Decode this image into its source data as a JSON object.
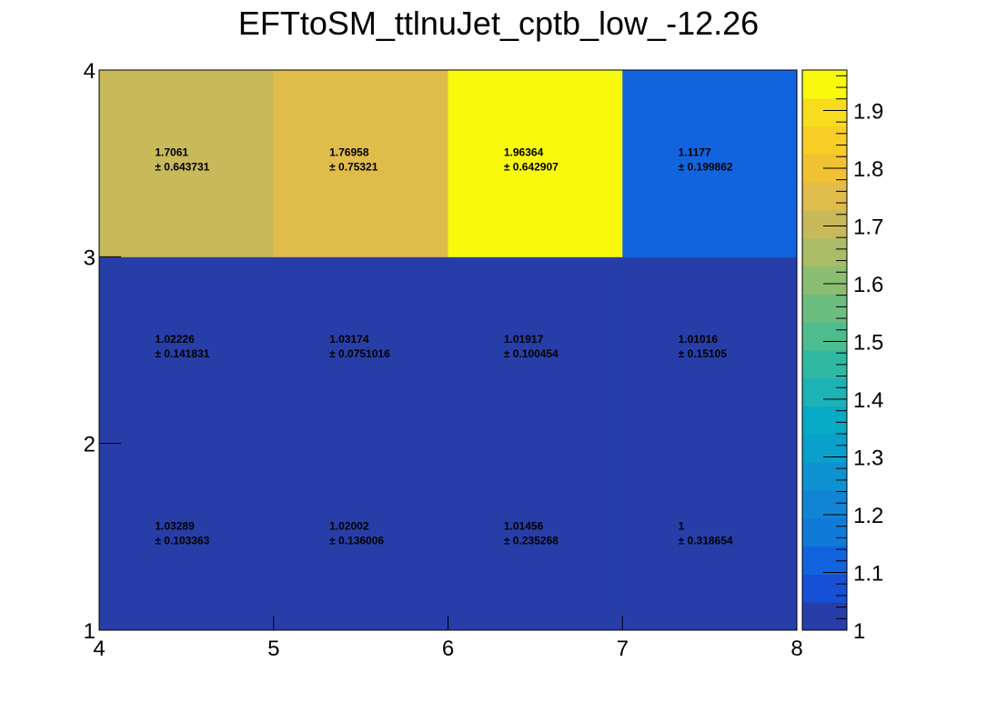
{
  "chart_data": {
    "type": "heatmap",
    "title": "EFTtoSM_ttlnuJet_cptb_low_-12.26",
    "xlabel": "",
    "ylabel": "",
    "x_edges": [
      4,
      5,
      6,
      7,
      8
    ],
    "y_edges": [
      1,
      2,
      3,
      4
    ],
    "x_ticks": [
      "4",
      "5",
      "6",
      "7",
      "8"
    ],
    "y_ticks": [
      "1",
      "2",
      "3",
      "4"
    ],
    "zlim": [
      1.0,
      1.97
    ],
    "z_ticks": [
      "1",
      "1.1",
      "1.2",
      "1.3",
      "1.4",
      "1.5",
      "1.6",
      "1.7",
      "1.8",
      "1.9"
    ],
    "cells": [
      {
        "x": 0,
        "y": 0,
        "value": 1.03289,
        "value_label": "1.03289",
        "error_label": "± 0.103363"
      },
      {
        "x": 1,
        "y": 0,
        "value": 1.02002,
        "value_label": "1.02002",
        "error_label": "± 0.136006"
      },
      {
        "x": 2,
        "y": 0,
        "value": 1.01456,
        "value_label": "1.01456",
        "error_label": "± 0.235268"
      },
      {
        "x": 3,
        "y": 0,
        "value": 1.0,
        "value_label": "1",
        "error_label": "± 0.318654"
      },
      {
        "x": 0,
        "y": 1,
        "value": 1.02226,
        "value_label": "1.02226",
        "error_label": "± 0.141831"
      },
      {
        "x": 1,
        "y": 1,
        "value": 1.03174,
        "value_label": "1.03174",
        "error_label": "± 0.0751016"
      },
      {
        "x": 2,
        "y": 1,
        "value": 1.01917,
        "value_label": "1.01917",
        "error_label": "± 0.100454"
      },
      {
        "x": 3,
        "y": 1,
        "value": 1.01016,
        "value_label": "1.01016",
        "error_label": "± 0.15105"
      },
      {
        "x": 0,
        "y": 2,
        "value": 1.7061,
        "value_label": "1.7061",
        "error_label": "± 0.643731"
      },
      {
        "x": 1,
        "y": 2,
        "value": 1.76958,
        "value_label": "1.76958",
        "error_label": "± 0.75321"
      },
      {
        "x": 2,
        "y": 2,
        "value": 1.96364,
        "value_label": "1.96364",
        "error_label": "± 0.642907"
      },
      {
        "x": 3,
        "y": 2,
        "value": 1.1177,
        "value_label": "1.1177",
        "error_label": "± 0.199862"
      }
    ],
    "palette": [
      "#273ea8",
      "#1550d6",
      "#1264de",
      "#0f7ad7",
      "#1185d3",
      "#0f92d2",
      "#09a0cc",
      "#07aac4",
      "#1db2b6",
      "#2fb9a2",
      "#4dbd8f",
      "#6cbd80",
      "#8bbd72",
      "#aabc65",
      "#c8b95a",
      "#e0bc4b",
      "#f0c133",
      "#f8cd26",
      "#f7dd1e",
      "#f9f90e"
    ],
    "legend": "right colorbar",
    "grid": false
  }
}
